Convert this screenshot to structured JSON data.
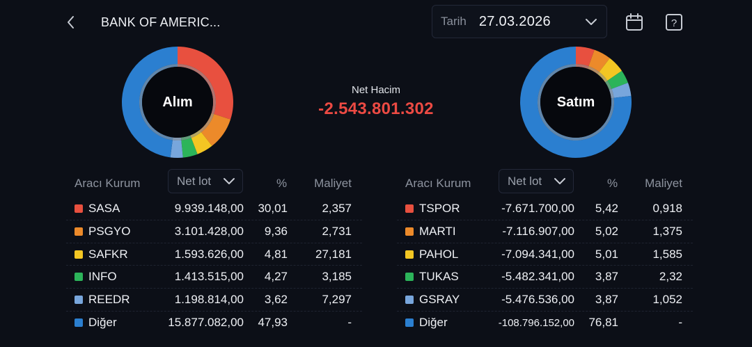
{
  "header": {
    "title": "BANK OF AMERIC...",
    "date_label": "Tarih",
    "date_value": "27.03.2026",
    "icons": {
      "back": "chevron-left-icon",
      "date_dropdown": "chevron-down-icon",
      "calendar": "calendar-icon",
      "help": "help-icon"
    }
  },
  "colors": {
    "background": "#0c0f17",
    "negative": "#ec4a43",
    "series": [
      "#e8503f",
      "#ec8a2a",
      "#f3c623",
      "#2cb45a",
      "#78a6dc",
      "#2b7fd0"
    ]
  },
  "summary": {
    "net_label": "Net Hacim",
    "net_value": "-2.543.801.302"
  },
  "buy": {
    "donut_label": "Alım",
    "columns": {
      "name": "Aracı Kurum",
      "sort": "Net lot",
      "pct": "%",
      "cost": "Maliyet"
    },
    "rows": [
      {
        "name": "SASA",
        "lot": "9.939.148,00",
        "pct": "30,01",
        "cost": "2,357",
        "color": "#e8503f"
      },
      {
        "name": "PSGYO",
        "lot": "3.101.428,00",
        "pct": "9,36",
        "cost": "2,731",
        "color": "#ec8a2a"
      },
      {
        "name": "SAFKR",
        "lot": "1.593.626,00",
        "pct": "4,81",
        "cost": "27,181",
        "color": "#f3c623"
      },
      {
        "name": "INFO",
        "lot": "1.413.515,00",
        "pct": "4,27",
        "cost": "3,185",
        "color": "#2cb45a"
      },
      {
        "name": "REEDR",
        "lot": "1.198.814,00",
        "pct": "3,62",
        "cost": "7,297",
        "color": "#78a6dc"
      },
      {
        "name": "Diğer",
        "lot": "15.877.082,00",
        "pct": "47,93",
        "cost": "-",
        "color": "#2b7fd0"
      }
    ]
  },
  "sell": {
    "donut_label": "Satım",
    "columns": {
      "name": "Aracı Kurum",
      "sort": "Net lot",
      "pct": "%",
      "cost": "Maliyet"
    },
    "rows": [
      {
        "name": "TSPOR",
        "lot": "-7.671.700,00",
        "pct": "5,42",
        "cost": "0,918",
        "color": "#e8503f"
      },
      {
        "name": "MARTI",
        "lot": "-7.116.907,00",
        "pct": "5,02",
        "cost": "1,375",
        "color": "#ec8a2a"
      },
      {
        "name": "PAHOL",
        "lot": "-7.094.341,00",
        "pct": "5,01",
        "cost": "1,585",
        "color": "#f3c623"
      },
      {
        "name": "TUKAS",
        "lot": "-5.482.341,00",
        "pct": "3,87",
        "cost": "2,32",
        "color": "#2cb45a"
      },
      {
        "name": "GSRAY",
        "lot": "-5.476.536,00",
        "pct": "3,87",
        "cost": "1,052",
        "color": "#78a6dc"
      },
      {
        "name": "Diğer",
        "lot": "-108.796.152,00",
        "pct": "76,81",
        "cost": "-",
        "color": "#2b7fd0"
      }
    ]
  },
  "chart_data": [
    {
      "type": "pie",
      "title": "Alım",
      "categories": [
        "SASA",
        "PSGYO",
        "SAFKR",
        "INFO",
        "REEDR",
        "Diğer"
      ],
      "values": [
        30.01,
        9.36,
        4.81,
        4.27,
        3.62,
        47.93
      ],
      "colors": [
        "#e8503f",
        "#ec8a2a",
        "#f3c623",
        "#2cb45a",
        "#78a6dc",
        "#2b7fd0"
      ]
    },
    {
      "type": "pie",
      "title": "Satım",
      "categories": [
        "TSPOR",
        "MARTI",
        "PAHOL",
        "TUKAS",
        "GSRAY",
        "Diğer"
      ],
      "values": [
        5.42,
        5.02,
        5.01,
        3.87,
        3.87,
        76.81
      ],
      "colors": [
        "#e8503f",
        "#ec8a2a",
        "#f3c623",
        "#2cb45a",
        "#78a6dc",
        "#2b7fd0"
      ]
    }
  ]
}
